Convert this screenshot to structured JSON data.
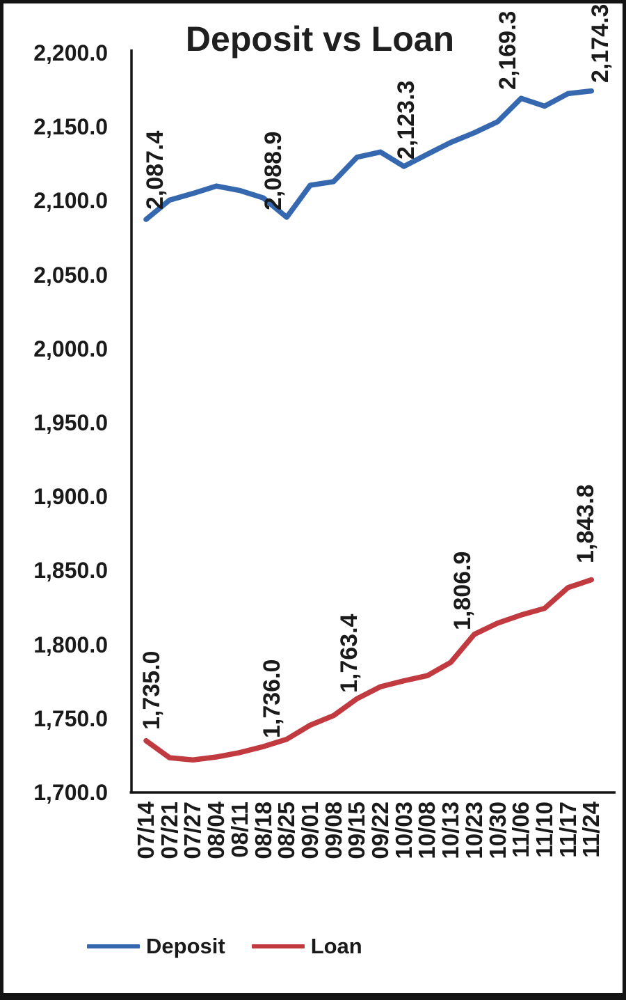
{
  "chart_data": {
    "type": "line",
    "title": "Deposit vs Loan",
    "categories": [
      "07/14",
      "07/21",
      "07/27",
      "08/04",
      "08/11",
      "08/18",
      "08/25",
      "09/01",
      "09/08",
      "09/15",
      "09/22",
      "10/03",
      "10/08",
      "10/13",
      "10/23",
      "10/30",
      "11/06",
      "11/10",
      "11/17",
      "11/24"
    ],
    "series": [
      {
        "name": "Deposit",
        "color": "#3568AF",
        "values": [
          2087.4,
          2100.5,
          2105.0,
          2110.0,
          2107.0,
          2102.0,
          2088.9,
          2110.5,
          2113.0,
          2129.5,
          2133.0,
          2123.3,
          2131.5,
          2139.5,
          2146.0,
          2153.5,
          2169.3,
          2164.0,
          2172.5,
          2174.3
        ]
      },
      {
        "name": "Loan",
        "color": "#C03A40",
        "values": [
          1735.0,
          1723.5,
          1722.0,
          1724.0,
          1727.0,
          1731.0,
          1736.0,
          1745.5,
          1752.0,
          1763.4,
          1771.5,
          1775.5,
          1779.0,
          1788.0,
          1806.9,
          1814.5,
          1820.0,
          1824.5,
          1838.5,
          1843.8
        ]
      }
    ],
    "point_labels": [
      {
        "series": "Deposit",
        "index": 0,
        "text": "2,087.4"
      },
      {
        "series": "Deposit",
        "index": 6,
        "text": "2,088.9"
      },
      {
        "series": "Deposit",
        "index": 11,
        "text": "2,123.3"
      },
      {
        "series": "Deposit",
        "index": 16,
        "text": "2,169.3"
      },
      {
        "series": "Deposit",
        "index": 19,
        "text": "2,174.3"
      },
      {
        "series": "Loan",
        "index": 0,
        "text": "1,735.0"
      },
      {
        "series": "Loan",
        "index": 6,
        "text": "1,736.0"
      },
      {
        "series": "Loan",
        "index": 9,
        "text": "1,763.4"
      },
      {
        "series": "Loan",
        "index": 14,
        "text": "1,806.9"
      },
      {
        "series": "Loan",
        "index": 19,
        "text": "1,843.8"
      }
    ],
    "y_axis": {
      "min": 1700,
      "max": 2200,
      "step": 50,
      "tick_labels": [
        "2,200.0",
        "2,150.0",
        "2,100.0",
        "2,050.0",
        "2,000.0",
        "1,950.0",
        "1,900.0",
        "1,850.0",
        "1,800.0",
        "1,750.0",
        "1,700.0"
      ]
    },
    "x_axis": {
      "label_rotation_degrees": -90
    },
    "legend": {
      "position": "bottom",
      "entries": [
        "Deposit",
        "Loan"
      ]
    },
    "grid": false,
    "colors": {
      "axis": "#151515",
      "text": "#1a1a1a",
      "background": "#ffffff"
    }
  }
}
